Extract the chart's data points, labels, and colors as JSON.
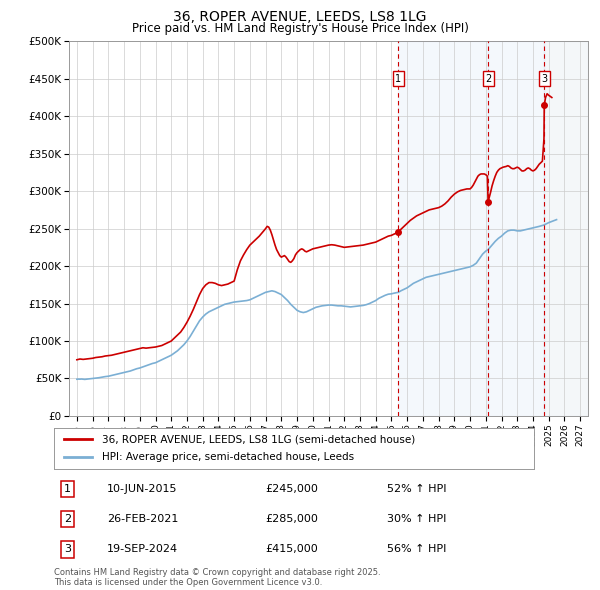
{
  "title": "36, ROPER AVENUE, LEEDS, LS8 1LG",
  "subtitle": "Price paid vs. HM Land Registry's House Price Index (HPI)",
  "legend_line1": "36, ROPER AVENUE, LEEDS, LS8 1LG (semi-detached house)",
  "legend_line2": "HPI: Average price, semi-detached house, Leeds",
  "footer1": "Contains HM Land Registry data © Crown copyright and database right 2025.",
  "footer2": "This data is licensed under the Open Government Licence v3.0.",
  "ylim": [
    0,
    500000
  ],
  "yticks": [
    0,
    50000,
    100000,
    150000,
    200000,
    250000,
    300000,
    350000,
    400000,
    450000,
    500000
  ],
  "ytick_labels": [
    "£0",
    "£50K",
    "£100K",
    "£150K",
    "£200K",
    "£250K",
    "£300K",
    "£350K",
    "£400K",
    "£450K",
    "£500K"
  ],
  "xlim_min": 1994.5,
  "xlim_max": 2027.5,
  "transactions": [
    {
      "num": 1,
      "date": "10-JUN-2015",
      "price": 245000,
      "x": 2015.44,
      "pct": "52% ↑ HPI"
    },
    {
      "num": 2,
      "date": "26-FEB-2021",
      "price": 285000,
      "x": 2021.15,
      "pct": "30% ↑ HPI"
    },
    {
      "num": 3,
      "date": "19-SEP-2024",
      "price": 415000,
      "x": 2024.72,
      "pct": "56% ↑ HPI"
    }
  ],
  "red_line_color": "#cc0000",
  "blue_line_color": "#7bafd4",
  "grid_color": "#cccccc",
  "hpi_line": [
    [
      1995.0,
      49000
    ],
    [
      1995.1,
      49200
    ],
    [
      1995.2,
      49100
    ],
    [
      1995.3,
      49300
    ],
    [
      1995.4,
      49000
    ],
    [
      1995.5,
      48800
    ],
    [
      1995.6,
      49100
    ],
    [
      1995.7,
      49300
    ],
    [
      1995.8,
      49500
    ],
    [
      1995.9,
      49800
    ],
    [
      1996.0,
      50000
    ],
    [
      1996.2,
      50500
    ],
    [
      1996.4,
      51000
    ],
    [
      1996.6,
      51800
    ],
    [
      1996.8,
      52500
    ],
    [
      1997.0,
      53000
    ],
    [
      1997.2,
      54000
    ],
    [
      1997.4,
      55000
    ],
    [
      1997.6,
      56000
    ],
    [
      1997.8,
      57000
    ],
    [
      1998.0,
      58000
    ],
    [
      1998.2,
      59000
    ],
    [
      1998.4,
      60000
    ],
    [
      1998.6,
      61500
    ],
    [
      1998.8,
      63000
    ],
    [
      1999.0,
      64000
    ],
    [
      1999.2,
      65500
    ],
    [
      1999.4,
      67000
    ],
    [
      1999.6,
      68500
    ],
    [
      1999.8,
      70000
    ],
    [
      2000.0,
      71000
    ],
    [
      2000.2,
      73000
    ],
    [
      2000.4,
      75000
    ],
    [
      2000.6,
      77000
    ],
    [
      2000.8,
      79000
    ],
    [
      2001.0,
      81000
    ],
    [
      2001.2,
      84000
    ],
    [
      2001.4,
      87000
    ],
    [
      2001.6,
      91000
    ],
    [
      2001.8,
      95000
    ],
    [
      2002.0,
      100000
    ],
    [
      2002.2,
      106000
    ],
    [
      2002.4,
      113000
    ],
    [
      2002.6,
      120000
    ],
    [
      2002.8,
      127000
    ],
    [
      2003.0,
      132000
    ],
    [
      2003.2,
      136000
    ],
    [
      2003.4,
      139000
    ],
    [
      2003.6,
      141000
    ],
    [
      2003.8,
      143000
    ],
    [
      2004.0,
      145000
    ],
    [
      2004.2,
      147000
    ],
    [
      2004.4,
      149000
    ],
    [
      2004.6,
      150000
    ],
    [
      2004.8,
      151000
    ],
    [
      2005.0,
      152000
    ],
    [
      2005.2,
      152500
    ],
    [
      2005.4,
      153000
    ],
    [
      2005.6,
      153500
    ],
    [
      2005.8,
      154000
    ],
    [
      2006.0,
      155000
    ],
    [
      2006.2,
      157000
    ],
    [
      2006.4,
      159000
    ],
    [
      2006.6,
      161000
    ],
    [
      2006.8,
      163000
    ],
    [
      2007.0,
      165000
    ],
    [
      2007.2,
      166000
    ],
    [
      2007.4,
      167000
    ],
    [
      2007.6,
      166000
    ],
    [
      2007.8,
      164000
    ],
    [
      2008.0,
      162000
    ],
    [
      2008.2,
      158000
    ],
    [
      2008.4,
      154000
    ],
    [
      2008.6,
      149000
    ],
    [
      2008.8,
      145000
    ],
    [
      2009.0,
      141000
    ],
    [
      2009.2,
      139000
    ],
    [
      2009.4,
      138000
    ],
    [
      2009.6,
      139000
    ],
    [
      2009.8,
      141000
    ],
    [
      2010.0,
      143000
    ],
    [
      2010.2,
      145000
    ],
    [
      2010.4,
      146000
    ],
    [
      2010.6,
      147000
    ],
    [
      2010.8,
      147500
    ],
    [
      2011.0,
      148000
    ],
    [
      2011.2,
      148000
    ],
    [
      2011.4,
      147500
    ],
    [
      2011.6,
      147000
    ],
    [
      2011.8,
      147000
    ],
    [
      2012.0,
      146500
    ],
    [
      2012.2,
      146000
    ],
    [
      2012.4,
      145500
    ],
    [
      2012.6,
      146000
    ],
    [
      2012.8,
      146500
    ],
    [
      2013.0,
      147000
    ],
    [
      2013.2,
      147500
    ],
    [
      2013.4,
      148500
    ],
    [
      2013.6,
      150000
    ],
    [
      2013.8,
      152000
    ],
    [
      2014.0,
      154000
    ],
    [
      2014.2,
      157000
    ],
    [
      2014.4,
      159000
    ],
    [
      2014.6,
      161000
    ],
    [
      2014.8,
      162500
    ],
    [
      2015.0,
      163000
    ],
    [
      2015.2,
      164000
    ],
    [
      2015.44,
      165000
    ],
    [
      2015.6,
      167000
    ],
    [
      2015.8,
      169000
    ],
    [
      2016.0,
      171000
    ],
    [
      2016.2,
      174000
    ],
    [
      2016.4,
      177000
    ],
    [
      2016.6,
      179000
    ],
    [
      2016.8,
      181000
    ],
    [
      2017.0,
      183000
    ],
    [
      2017.2,
      185000
    ],
    [
      2017.4,
      186000
    ],
    [
      2017.6,
      187000
    ],
    [
      2017.8,
      188000
    ],
    [
      2018.0,
      189000
    ],
    [
      2018.2,
      190000
    ],
    [
      2018.4,
      191000
    ],
    [
      2018.6,
      192000
    ],
    [
      2018.8,
      193000
    ],
    [
      2019.0,
      194000
    ],
    [
      2019.2,
      195000
    ],
    [
      2019.4,
      196000
    ],
    [
      2019.6,
      197000
    ],
    [
      2019.8,
      198000
    ],
    [
      2020.0,
      199000
    ],
    [
      2020.2,
      201000
    ],
    [
      2020.4,
      204000
    ],
    [
      2020.6,
      210000
    ],
    [
      2020.8,
      216000
    ],
    [
      2021.0,
      220000
    ],
    [
      2021.15,
      222000
    ],
    [
      2021.4,
      228000
    ],
    [
      2021.6,
      233000
    ],
    [
      2021.8,
      237000
    ],
    [
      2022.0,
      240000
    ],
    [
      2022.2,
      244000
    ],
    [
      2022.4,
      247000
    ],
    [
      2022.6,
      248000
    ],
    [
      2022.8,
      248000
    ],
    [
      2023.0,
      247000
    ],
    [
      2023.2,
      247000
    ],
    [
      2023.4,
      248000
    ],
    [
      2023.6,
      249000
    ],
    [
      2023.8,
      250000
    ],
    [
      2024.0,
      251000
    ],
    [
      2024.2,
      252000
    ],
    [
      2024.4,
      253000
    ],
    [
      2024.72,
      255000
    ],
    [
      2024.9,
      257000
    ],
    [
      2025.0,
      258000
    ],
    [
      2025.5,
      262000
    ]
  ],
  "red_line": [
    [
      1995.0,
      75000
    ],
    [
      1995.2,
      76000
    ],
    [
      1995.4,
      75500
    ],
    [
      1995.6,
      76000
    ],
    [
      1995.8,
      76500
    ],
    [
      1996.0,
      77000
    ],
    [
      1996.2,
      78000
    ],
    [
      1996.4,
      78500
    ],
    [
      1996.6,
      79000
    ],
    [
      1996.8,
      80000
    ],
    [
      1997.0,
      80500
    ],
    [
      1997.2,
      81000
    ],
    [
      1997.4,
      82000
    ],
    [
      1997.6,
      83000
    ],
    [
      1997.8,
      84000
    ],
    [
      1998.0,
      85000
    ],
    [
      1998.2,
      86000
    ],
    [
      1998.4,
      87000
    ],
    [
      1998.6,
      88000
    ],
    [
      1998.8,
      89000
    ],
    [
      1999.0,
      90000
    ],
    [
      1999.2,
      91000
    ],
    [
      1999.4,
      90500
    ],
    [
      1999.6,
      91000
    ],
    [
      1999.8,
      91500
    ],
    [
      2000.0,
      92000
    ],
    [
      2000.2,
      93000
    ],
    [
      2000.4,
      94000
    ],
    [
      2000.6,
      96000
    ],
    [
      2000.8,
      98000
    ],
    [
      2001.0,
      100000
    ],
    [
      2001.2,
      104000
    ],
    [
      2001.4,
      108000
    ],
    [
      2001.6,
      112000
    ],
    [
      2001.8,
      118000
    ],
    [
      2002.0,
      125000
    ],
    [
      2002.2,
      133000
    ],
    [
      2002.4,
      142000
    ],
    [
      2002.6,
      152000
    ],
    [
      2002.8,
      162000
    ],
    [
      2003.0,
      170000
    ],
    [
      2003.2,
      175000
    ],
    [
      2003.4,
      178000
    ],
    [
      2003.6,
      178000
    ],
    [
      2003.8,
      177000
    ],
    [
      2004.0,
      175000
    ],
    [
      2004.2,
      174000
    ],
    [
      2004.4,
      175000
    ],
    [
      2004.6,
      176000
    ],
    [
      2004.8,
      178000
    ],
    [
      2005.0,
      180000
    ],
    [
      2005.2,
      195000
    ],
    [
      2005.4,
      207000
    ],
    [
      2005.6,
      215000
    ],
    [
      2005.8,
      222000
    ],
    [
      2006.0,
      228000
    ],
    [
      2006.2,
      232000
    ],
    [
      2006.4,
      236000
    ],
    [
      2006.6,
      240000
    ],
    [
      2006.8,
      245000
    ],
    [
      2007.0,
      250000
    ],
    [
      2007.1,
      253000
    ],
    [
      2007.2,
      252000
    ],
    [
      2007.3,
      248000
    ],
    [
      2007.4,
      242000
    ],
    [
      2007.5,
      235000
    ],
    [
      2007.6,
      228000
    ],
    [
      2007.7,
      222000
    ],
    [
      2007.8,
      218000
    ],
    [
      2007.9,
      214000
    ],
    [
      2008.0,
      212000
    ],
    [
      2008.1,
      213000
    ],
    [
      2008.2,
      214000
    ],
    [
      2008.3,
      212000
    ],
    [
      2008.4,
      209000
    ],
    [
      2008.5,
      206000
    ],
    [
      2008.6,
      205000
    ],
    [
      2008.7,
      207000
    ],
    [
      2008.8,
      210000
    ],
    [
      2008.9,
      215000
    ],
    [
      2009.0,
      218000
    ],
    [
      2009.1,
      220000
    ],
    [
      2009.2,
      222000
    ],
    [
      2009.3,
      223000
    ],
    [
      2009.4,
      222000
    ],
    [
      2009.5,
      220000
    ],
    [
      2009.6,
      219000
    ],
    [
      2009.7,
      220000
    ],
    [
      2009.8,
      221000
    ],
    [
      2009.9,
      222000
    ],
    [
      2010.0,
      223000
    ],
    [
      2010.2,
      224000
    ],
    [
      2010.4,
      225000
    ],
    [
      2010.6,
      226000
    ],
    [
      2010.8,
      227000
    ],
    [
      2011.0,
      228000
    ],
    [
      2011.2,
      228500
    ],
    [
      2011.4,
      228000
    ],
    [
      2011.6,
      227000
    ],
    [
      2011.8,
      226000
    ],
    [
      2012.0,
      225000
    ],
    [
      2012.2,
      225500
    ],
    [
      2012.4,
      226000
    ],
    [
      2012.6,
      226500
    ],
    [
      2012.8,
      227000
    ],
    [
      2013.0,
      227500
    ],
    [
      2013.2,
      228000
    ],
    [
      2013.4,
      229000
    ],
    [
      2013.6,
      230000
    ],
    [
      2013.8,
      231000
    ],
    [
      2014.0,
      232000
    ],
    [
      2014.2,
      234000
    ],
    [
      2014.4,
      236000
    ],
    [
      2014.6,
      238000
    ],
    [
      2014.8,
      240000
    ],
    [
      2015.0,
      241000
    ],
    [
      2015.2,
      243000
    ],
    [
      2015.44,
      245000
    ],
    [
      2015.6,
      249000
    ],
    [
      2015.8,
      253000
    ],
    [
      2016.0,
      257000
    ],
    [
      2016.2,
      261000
    ],
    [
      2016.4,
      264000
    ],
    [
      2016.6,
      267000
    ],
    [
      2016.8,
      269000
    ],
    [
      2017.0,
      271000
    ],
    [
      2017.2,
      273000
    ],
    [
      2017.4,
      275000
    ],
    [
      2017.6,
      276000
    ],
    [
      2017.8,
      277000
    ],
    [
      2018.0,
      278000
    ],
    [
      2018.2,
      280000
    ],
    [
      2018.4,
      283000
    ],
    [
      2018.6,
      287000
    ],
    [
      2018.8,
      292000
    ],
    [
      2019.0,
      296000
    ],
    [
      2019.2,
      299000
    ],
    [
      2019.4,
      301000
    ],
    [
      2019.6,
      302000
    ],
    [
      2019.8,
      303000
    ],
    [
      2020.0,
      303000
    ],
    [
      2020.1,
      305000
    ],
    [
      2020.2,
      308000
    ],
    [
      2020.3,
      312000
    ],
    [
      2020.4,
      316000
    ],
    [
      2020.5,
      320000
    ],
    [
      2020.6,
      322000
    ],
    [
      2020.7,
      323000
    ],
    [
      2020.8,
      323000
    ],
    [
      2020.9,
      323000
    ],
    [
      2021.0,
      322000
    ],
    [
      2021.1,
      320000
    ],
    [
      2021.15,
      285000
    ],
    [
      2021.2,
      290000
    ],
    [
      2021.3,
      298000
    ],
    [
      2021.4,
      307000
    ],
    [
      2021.5,
      314000
    ],
    [
      2021.6,
      320000
    ],
    [
      2021.7,
      325000
    ],
    [
      2021.8,
      328000
    ],
    [
      2021.9,
      330000
    ],
    [
      2022.0,
      331000
    ],
    [
      2022.1,
      332000
    ],
    [
      2022.2,
      332500
    ],
    [
      2022.3,
      333000
    ],
    [
      2022.4,
      334000
    ],
    [
      2022.5,
      333000
    ],
    [
      2022.6,
      331000
    ],
    [
      2022.7,
      330000
    ],
    [
      2022.8,
      330000
    ],
    [
      2022.9,
      331000
    ],
    [
      2023.0,
      332000
    ],
    [
      2023.1,
      331000
    ],
    [
      2023.2,
      329000
    ],
    [
      2023.3,
      327000
    ],
    [
      2023.4,
      327000
    ],
    [
      2023.5,
      328000
    ],
    [
      2023.6,
      330000
    ],
    [
      2023.7,
      331000
    ],
    [
      2023.8,
      330000
    ],
    [
      2023.9,
      328000
    ],
    [
      2024.0,
      327000
    ],
    [
      2024.1,
      328000
    ],
    [
      2024.2,
      330000
    ],
    [
      2024.3,
      333000
    ],
    [
      2024.4,
      336000
    ],
    [
      2024.5,
      338000
    ],
    [
      2024.6,
      340000
    ],
    [
      2024.7,
      370000
    ],
    [
      2024.72,
      415000
    ],
    [
      2024.8,
      425000
    ],
    [
      2024.9,
      430000
    ],
    [
      2025.0,
      428000
    ],
    [
      2025.2,
      425000
    ]
  ]
}
